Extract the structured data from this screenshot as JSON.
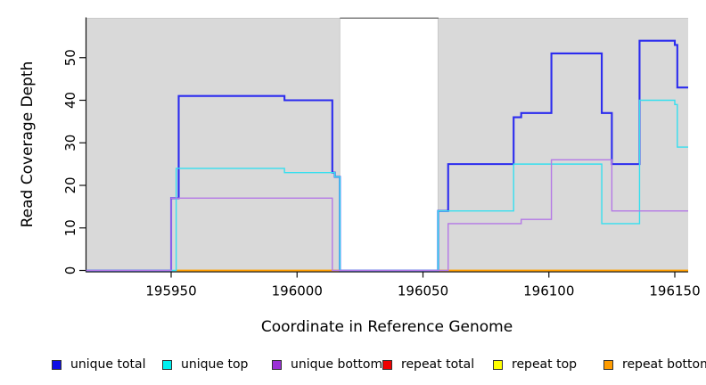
{
  "chart_data": {
    "type": "line",
    "style": "step",
    "title": "",
    "xlabel": "Coordinate in Reference Genome",
    "ylabel": "Read Coverage Depth",
    "xlim": [
      195916,
      196156
    ],
    "ylim": [
      0,
      59
    ],
    "x_ticks": [
      195950,
      196000,
      196050,
      196100,
      196150
    ],
    "y_ticks": [
      0,
      10,
      20,
      30,
      40,
      50
    ],
    "grid": false,
    "legend_position": "bottom",
    "plot_bg": "#FFFFFF",
    "shaded_regions": [
      {
        "from": 195916,
        "to": 196017,
        "color": "#D9D9D9"
      },
      {
        "from": 196056,
        "to": 196156,
        "color": "#D9D9D9"
      }
    ],
    "series": [
      {
        "name": "repeat total",
        "color": "#F00000",
        "lw": 1.4,
        "segments": [
          {
            "pts": [
              [
                195952,
                0
              ]
            ],
            "end": 196017
          },
          {
            "pts": [
              [
                196056,
                0
              ]
            ],
            "end": 196156
          }
        ]
      },
      {
        "name": "repeat top",
        "color": "#FFFF00",
        "lw": 1.4,
        "segments": [
          {
            "pts": [
              [
                195952,
                0
              ]
            ],
            "end": 196017
          },
          {
            "pts": [
              [
                196056,
                0
              ]
            ],
            "end": 196156
          }
        ]
      },
      {
        "name": "repeat bottom",
        "color": "#FF9C00",
        "lw": 1.4,
        "segments": [
          {
            "pts": [
              [
                195952,
                0
              ]
            ],
            "end": 196017
          },
          {
            "pts": [
              [
                196056,
                0
              ]
            ],
            "end": 196156
          }
        ]
      },
      {
        "name": "unique total",
        "color": "#2B2BEF",
        "lw": 2.1,
        "segments": [
          {
            "pts": [
              [
                195916,
                0
              ],
              [
                195950,
                17
              ],
              [
                195953,
                41
              ],
              [
                195995,
                40
              ],
              [
                196014,
                23
              ],
              [
                196015,
                22
              ],
              [
                196017,
                0
              ],
              [
                196056,
                14
              ],
              [
                196060,
                25
              ],
              [
                196086,
                36
              ],
              [
                196089,
                37
              ],
              [
                196101,
                51
              ],
              [
                196121,
                37
              ],
              [
                196125,
                25
              ],
              [
                196136,
                54
              ],
              [
                196150,
                53
              ],
              [
                196151,
                43
              ]
            ],
            "end": 196156
          }
        ]
      },
      {
        "name": "unique top",
        "color": "#35DFEF",
        "lw": 1.4,
        "segments": [
          {
            "pts": [
              [
                195916,
                0
              ],
              [
                195952,
                24
              ],
              [
                195995,
                23
              ],
              [
                196015,
                22
              ],
              [
                196017,
                0
              ],
              [
                196056,
                14
              ],
              [
                196086,
                25
              ],
              [
                196121,
                11
              ],
              [
                196136,
                40
              ],
              [
                196150,
                39
              ],
              [
                196151,
                29
              ]
            ],
            "end": 196156
          }
        ]
      },
      {
        "name": "unique bottom",
        "color": "#B478E6",
        "lw": 1.4,
        "segments": [
          {
            "pts": [
              [
                195916,
                0
              ],
              [
                195950,
                17
              ],
              [
                196014,
                0
              ],
              [
                196060,
                11
              ],
              [
                196089,
                12
              ],
              [
                196101,
                26
              ],
              [
                196125,
                14
              ]
            ],
            "end": 196156
          }
        ]
      }
    ],
    "legend": [
      {
        "label": "unique total",
        "color": "#0D0DE6"
      },
      {
        "label": "unique top",
        "color": "#00EFEF"
      },
      {
        "label": "unique bottom",
        "color": "#9B30D6"
      },
      {
        "label": "repeat total",
        "color": "#F00000"
      },
      {
        "label": "repeat top",
        "color": "#FFFF00"
      },
      {
        "label": "repeat bottom",
        "color": "#FF9C00"
      }
    ]
  }
}
